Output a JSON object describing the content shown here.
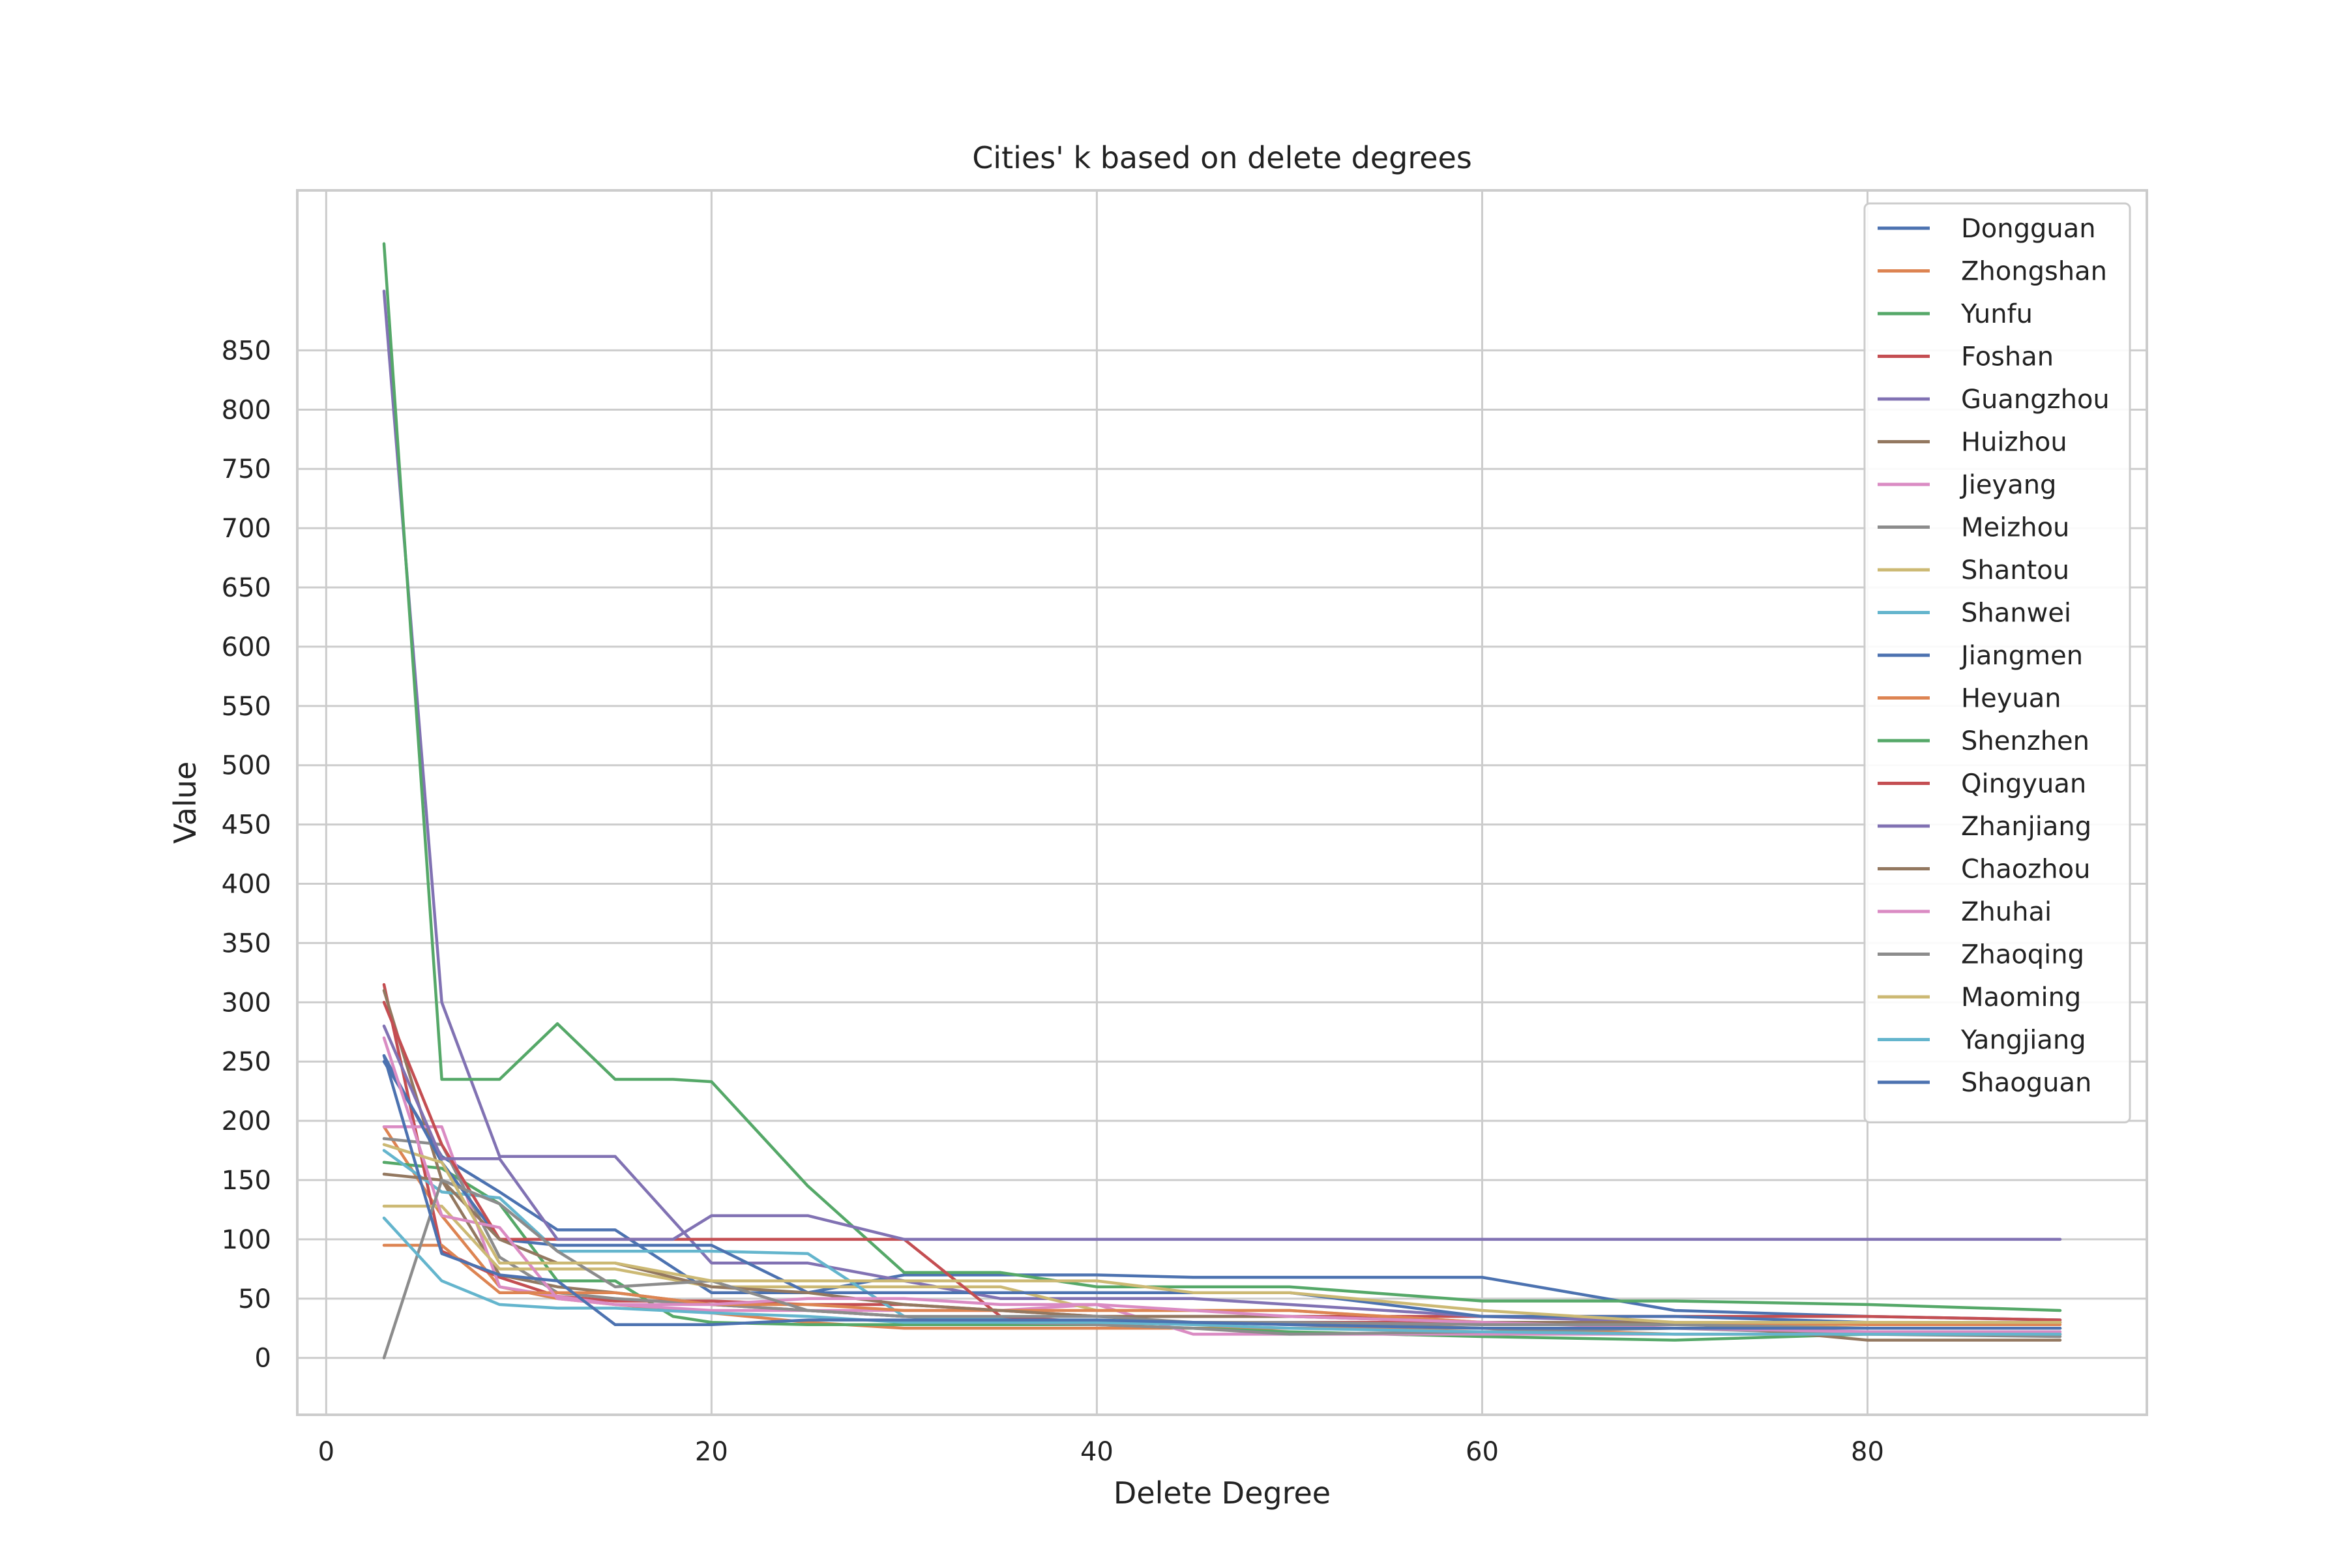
{
  "chart_data": {
    "type": "line",
    "title": "Cities' k based on delete degrees",
    "xlabel": "Delete Degree",
    "ylabel": "Value",
    "xlim": [
      -1.5,
      94.5
    ],
    "ylim": [
      -48,
      985
    ],
    "xticks": [
      0,
      20,
      40,
      60,
      80
    ],
    "yticks": [
      0,
      50,
      100,
      150,
      200,
      250,
      300,
      350,
      400,
      450,
      500,
      550,
      600,
      650,
      700,
      750,
      800,
      850
    ],
    "grid": true,
    "legend_position": "top-right",
    "series": [
      {
        "name": "Dongguan",
        "color": "#4c72b0",
        "x": [
          3,
          6,
          9,
          12,
          15,
          20,
          25,
          30,
          35,
          40,
          45,
          50,
          60,
          70,
          80,
          90
        ],
        "y": [
          250,
          170,
          140,
          108,
          108,
          55,
          55,
          70,
          70,
          70,
          68,
          68,
          68,
          40,
          35,
          32
        ]
      },
      {
        "name": "Zhongshan",
        "color": "#dd8452",
        "x": [
          3,
          6,
          9,
          12,
          15,
          20,
          25,
          30,
          35,
          40,
          45,
          50,
          60,
          70,
          80,
          90
        ],
        "y": [
          195,
          120,
          60,
          50,
          45,
          38,
          30,
          25,
          25,
          25,
          25,
          25,
          25,
          20,
          20,
          20
        ]
      },
      {
        "name": "Yunfu",
        "color": "#55a868",
        "x": [
          3,
          6,
          9,
          12,
          15,
          18,
          20,
          25,
          30,
          35,
          40,
          45,
          50,
          60,
          70,
          80,
          90
        ],
        "y": [
          165,
          160,
          130,
          65,
          65,
          35,
          30,
          28,
          28,
          28,
          28,
          25,
          22,
          18,
          15,
          20,
          20
        ]
      },
      {
        "name": "Foshan",
        "color": "#c44e52",
        "x": [
          3,
          6,
          9,
          12,
          15,
          20,
          25,
          30,
          35,
          40,
          45,
          50,
          60,
          70,
          80,
          90
        ],
        "y": [
          315,
          90,
          68,
          52,
          48,
          48,
          45,
          45,
          40,
          35,
          35,
          35,
          35,
          35,
          35,
          32
        ]
      },
      {
        "name": "Guangzhou",
        "color": "#8172b3",
        "x": [
          3,
          6,
          9,
          12,
          15,
          20,
          25,
          30,
          35,
          40,
          45,
          50,
          60,
          70,
          80,
          90
        ],
        "y": [
          900,
          300,
          170,
          170,
          170,
          80,
          80,
          65,
          50,
          50,
          50,
          45,
          35,
          30,
          30,
          30
        ]
      },
      {
        "name": "Huizhou",
        "color": "#937860",
        "x": [
          3,
          6,
          9,
          12,
          15,
          20,
          25,
          30,
          35,
          40,
          45,
          50,
          60,
          70,
          80,
          90
        ],
        "y": [
          310,
          150,
          70,
          60,
          55,
          45,
          40,
          35,
          30,
          30,
          30,
          30,
          25,
          25,
          25,
          25
        ]
      },
      {
        "name": "Jieyang",
        "color": "#da8bc3",
        "x": [
          3,
          6,
          9,
          12,
          15,
          20,
          25,
          30,
          35,
          40,
          45,
          50,
          60,
          70,
          80,
          90
        ],
        "y": [
          195,
          195,
          60,
          52,
          45,
          40,
          40,
          40,
          40,
          45,
          20,
          20,
          20,
          20,
          20,
          20
        ]
      },
      {
        "name": "Meizhou",
        "color": "#8c8c8c",
        "x": [
          3,
          6,
          9,
          12,
          15,
          20,
          25,
          30,
          35,
          40,
          45,
          50,
          60,
          70,
          80,
          90
        ],
        "y": [
          185,
          180,
          85,
          55,
          50,
          45,
          40,
          35,
          30,
          28,
          25,
          20,
          22,
          25,
          20,
          18
        ]
      },
      {
        "name": "Shantou",
        "color": "#ccb974",
        "x": [
          3,
          6,
          9,
          12,
          15,
          20,
          25,
          30,
          35,
          40,
          45,
          50,
          60,
          70,
          80,
          90
        ],
        "y": [
          128,
          128,
          75,
          75,
          75,
          60,
          60,
          60,
          60,
          40,
          40,
          40,
          30,
          30,
          25,
          25
        ]
      },
      {
        "name": "Shanwei",
        "color": "#64b5cd",
        "x": [
          3,
          6,
          9,
          12,
          15,
          20,
          25,
          30,
          35,
          40,
          45,
          50,
          60,
          70,
          80,
          90
        ],
        "y": [
          175,
          140,
          135,
          90,
          90,
          90,
          88,
          35,
          33,
          30,
          30,
          28,
          25,
          25,
          25,
          25
        ]
      },
      {
        "name": "Jiangmen",
        "color": "#4c72b0",
        "x": [
          3,
          6,
          9,
          12,
          15,
          20,
          25,
          30,
          35,
          40,
          45,
          50,
          60,
          70,
          80,
          90
        ],
        "y": [
          255,
          165,
          100,
          95,
          95,
          95,
          55,
          55,
          55,
          55,
          55,
          55,
          35,
          35,
          30,
          30
        ]
      },
      {
        "name": "Heyuan",
        "color": "#dd8452",
        "x": [
          3,
          6,
          9,
          12,
          15,
          20,
          25,
          30,
          35,
          40,
          45,
          50,
          60,
          70,
          80,
          90
        ],
        "y": [
          95,
          95,
          55,
          55,
          55,
          45,
          45,
          40,
          40,
          40,
          40,
          40,
          30,
          30,
          28,
          28
        ]
      },
      {
        "name": "Shenzhen",
        "color": "#55a868",
        "x": [
          3,
          6,
          9,
          12,
          15,
          18,
          20,
          25,
          30,
          35,
          40,
          45,
          50,
          60,
          70,
          80,
          90
        ],
        "y": [
          940,
          235,
          235,
          282,
          235,
          235,
          233,
          145,
          72,
          72,
          60,
          60,
          60,
          48,
          48,
          45,
          40
        ]
      },
      {
        "name": "Qingyuan",
        "color": "#c44e52",
        "x": [
          3,
          6,
          9,
          12,
          15,
          20,
          25,
          30,
          35,
          40,
          45,
          50,
          60,
          70,
          80,
          90
        ],
        "y": [
          300,
          180,
          100,
          100,
          100,
          100,
          100,
          100,
          35,
          30,
          30,
          30,
          30,
          30,
          30,
          30
        ]
      },
      {
        "name": "Zhanjiang",
        "color": "#8172b3",
        "x": [
          3,
          6,
          9,
          12,
          15,
          18,
          20,
          25,
          30,
          35,
          40,
          45,
          50,
          60,
          70,
          80,
          90
        ],
        "y": [
          280,
          168,
          168,
          100,
          100,
          100,
          120,
          120,
          100,
          100,
          100,
          100,
          100,
          100,
          100,
          100,
          100
        ]
      },
      {
        "name": "Chaozhou",
        "color": "#937860",
        "x": [
          3,
          6,
          9,
          12,
          15,
          20,
          25,
          30,
          35,
          40,
          45,
          50,
          60,
          70,
          80,
          90
        ],
        "y": [
          155,
          150,
          100,
          80,
          80,
          60,
          55,
          45,
          40,
          35,
          35,
          35,
          30,
          30,
          15,
          15
        ]
      },
      {
        "name": "Zhuhai",
        "color": "#da8bc3",
        "x": [
          3,
          6,
          9,
          12,
          15,
          20,
          25,
          30,
          35,
          40,
          45,
          50,
          60,
          70,
          80,
          90
        ],
        "y": [
          270,
          120,
          110,
          50,
          45,
          45,
          50,
          50,
          45,
          45,
          40,
          35,
          30,
          25,
          22,
          22
        ]
      },
      {
        "name": "Zhaoqing",
        "color": "#8c8c8c",
        "x": [
          3,
          6,
          9,
          12,
          15,
          20,
          25,
          30,
          35,
          40,
          45,
          50,
          60,
          70,
          80,
          90
        ],
        "y": [
          0,
          150,
          130,
          90,
          60,
          65,
          40,
          35,
          35,
          35,
          30,
          30,
          28,
          28,
          25,
          25
        ]
      },
      {
        "name": "Maoming",
        "color": "#ccb974",
        "x": [
          3,
          6,
          9,
          12,
          15,
          20,
          25,
          30,
          35,
          40,
          45,
          50,
          60,
          70,
          80,
          90
        ],
        "y": [
          180,
          165,
          80,
          80,
          80,
          65,
          65,
          65,
          65,
          65,
          55,
          55,
          40,
          30,
          30,
          30
        ]
      },
      {
        "name": "Yangjiang",
        "color": "#64b5cd",
        "x": [
          3,
          6,
          9,
          12,
          15,
          20,
          25,
          30,
          35,
          40,
          45,
          50,
          60,
          70,
          80,
          90
        ],
        "y": [
          118,
          65,
          45,
          42,
          42,
          38,
          35,
          30,
          30,
          30,
          28,
          25,
          22,
          20,
          20,
          20
        ]
      },
      {
        "name": "Shaoguan",
        "color": "#4c72b0",
        "x": [
          3,
          6,
          9,
          12,
          15,
          20,
          25,
          30,
          35,
          40,
          45,
          50,
          60,
          70,
          80,
          90
        ],
        "y": [
          255,
          88,
          70,
          65,
          28,
          28,
          32,
          32,
          32,
          32,
          30,
          28,
          25,
          25,
          25,
          25
        ]
      }
    ]
  }
}
